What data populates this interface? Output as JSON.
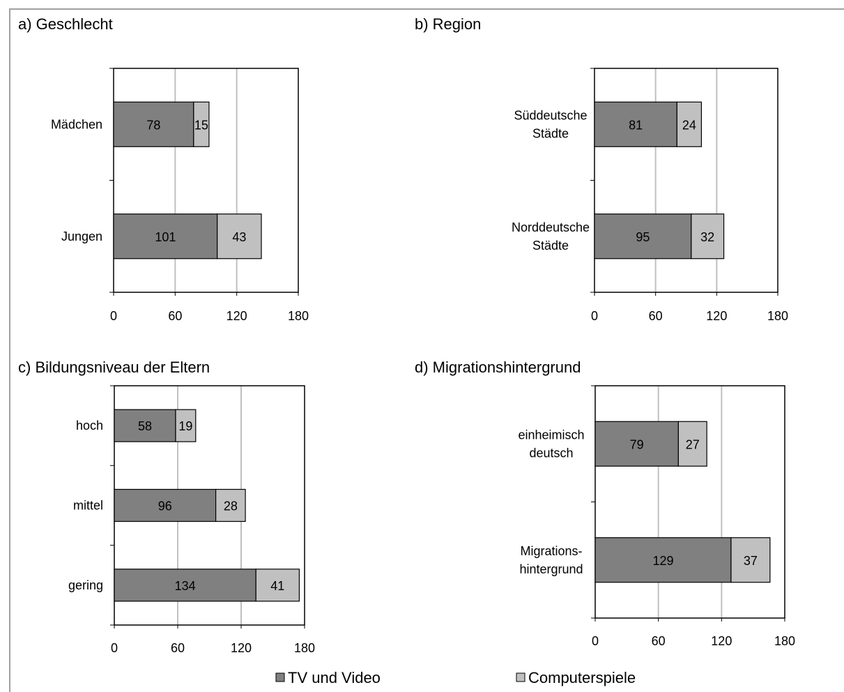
{
  "legend": [
    {
      "label": "TV und Video",
      "color": "#808080"
    },
    {
      "label": "Computerspiele",
      "color": "#c0c0c0"
    }
  ],
  "chart_data": [
    {
      "type": "bar",
      "orientation": "horizontal",
      "stacked": true,
      "title": "a) Geschlecht",
      "categories": [
        [
          "Mädchen"
        ],
        [
          "Jungen"
        ]
      ],
      "series": [
        {
          "name": "TV und Video",
          "values": [
            78,
            101
          ]
        },
        {
          "name": "Computerspiele",
          "values": [
            15,
            43
          ]
        }
      ],
      "xlim": [
        0,
        180
      ],
      "xticks": [
        "0",
        "60",
        "120",
        "180"
      ],
      "grid": true
    },
    {
      "type": "bar",
      "orientation": "horizontal",
      "stacked": true,
      "title": "b) Region",
      "categories": [
        [
          "Süddeutsche",
          "Städte"
        ],
        [
          "Norddeutsche",
          "Städte"
        ]
      ],
      "series": [
        {
          "name": "TV und Video",
          "values": [
            81,
            95
          ]
        },
        {
          "name": "Computerspiele",
          "values": [
            24,
            32
          ]
        }
      ],
      "xlim": [
        0,
        180
      ],
      "xticks": [
        "0",
        "60",
        "120",
        "180"
      ],
      "grid": true
    },
    {
      "type": "bar",
      "orientation": "horizontal",
      "stacked": true,
      "title": "c) Bildungsniveau der Eltern",
      "categories": [
        [
          "hoch"
        ],
        [
          "mittel"
        ],
        [
          "gering"
        ]
      ],
      "series": [
        {
          "name": "TV und Video",
          "values": [
            58,
            96,
            134
          ]
        },
        {
          "name": "Computerspiele",
          "values": [
            19,
            28,
            41
          ]
        }
      ],
      "xlim": [
        0,
        180
      ],
      "xticks": [
        "0",
        "60",
        "120",
        "180"
      ],
      "grid": true
    },
    {
      "type": "bar",
      "orientation": "horizontal",
      "stacked": true,
      "title": "d) Migrationshintergrund",
      "categories": [
        [
          "einheimisch",
          "deutsch"
        ],
        [
          "Migrations-",
          "hintergrund"
        ]
      ],
      "series": [
        {
          "name": "TV und Video",
          "values": [
            79,
            129
          ]
        },
        {
          "name": "Computerspiele",
          "values": [
            27,
            37
          ]
        }
      ],
      "xlim": [
        0,
        180
      ],
      "xticks": [
        "0",
        "60",
        "120",
        "180"
      ],
      "grid": true
    }
  ]
}
